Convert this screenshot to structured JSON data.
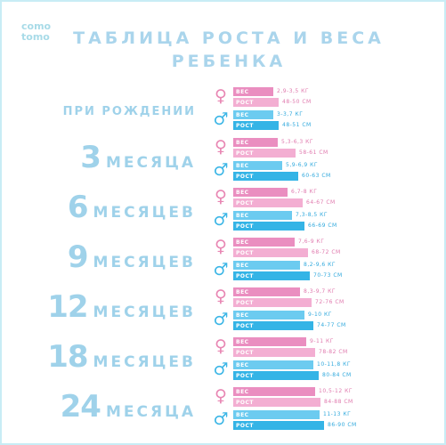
{
  "logo": {
    "line1": "como",
    "line2": "tomo"
  },
  "title": {
    "line1": "ТАБЛИЦА РОСТА И ВЕСА",
    "line2": "РЕБЕНКА"
  },
  "labels": {
    "weight": "ВЕС",
    "height": "РОСТ"
  },
  "colors": {
    "title": "#aad5ec",
    "girl": "#ea8ec0",
    "boy": "#34b4e6"
  },
  "icons": {
    "girl": "female-sign-icon",
    "boy": "male-sign-icon"
  },
  "rows": [
    {
      "age_text": "ПРИ РОЖДЕНИИ",
      "age_num": "",
      "age_word": "",
      "girl": {
        "weight": "2,9-3,5 КГ",
        "height": "48-50 СМ"
      },
      "boy": {
        "weight": "3-3,7 КГ",
        "height": "48-51 СМ"
      }
    },
    {
      "age_text": "",
      "age_num": "3",
      "age_word": "МЕСЯЦА",
      "girl": {
        "weight": "5,3-6,3 КГ",
        "height": "58-61 СМ"
      },
      "boy": {
        "weight": "5,9-6,9 КГ",
        "height": "60-63 СМ"
      }
    },
    {
      "age_text": "",
      "age_num": "6",
      "age_word": "МЕСЯЦЕВ",
      "girl": {
        "weight": "6,7-8 КГ",
        "height": "64-67 СМ"
      },
      "boy": {
        "weight": "7,3-8,5 КГ",
        "height": "66-69 СМ"
      }
    },
    {
      "age_text": "",
      "age_num": "9",
      "age_word": "МЕСЯЦЕВ",
      "girl": {
        "weight": "7,6-9 КГ",
        "height": "68-72 СМ"
      },
      "boy": {
        "weight": "8,2-9,6 КГ",
        "height": "70-73 СМ"
      }
    },
    {
      "age_text": "",
      "age_num": "12",
      "age_word": "МЕСЯЦЕВ",
      "girl": {
        "weight": "8,3-9,7 КГ",
        "height": "72-76 СМ"
      },
      "boy": {
        "weight": "9-10 КГ",
        "height": "74-77 СМ"
      }
    },
    {
      "age_text": "",
      "age_num": "18",
      "age_word": "МЕСЯЦЕВ",
      "girl": {
        "weight": "9-11 КГ",
        "height": "78-82 СМ"
      },
      "boy": {
        "weight": "10-11,8 КГ",
        "height": "80-84 СМ"
      }
    },
    {
      "age_text": "",
      "age_num": "24",
      "age_word": "МЕСЯЦА",
      "girl": {
        "weight": "10,5-12 КГ",
        "height": "84-88 СМ"
      },
      "boy": {
        "weight": "11-13 КГ",
        "height": "86-90 СМ"
      }
    }
  ]
}
